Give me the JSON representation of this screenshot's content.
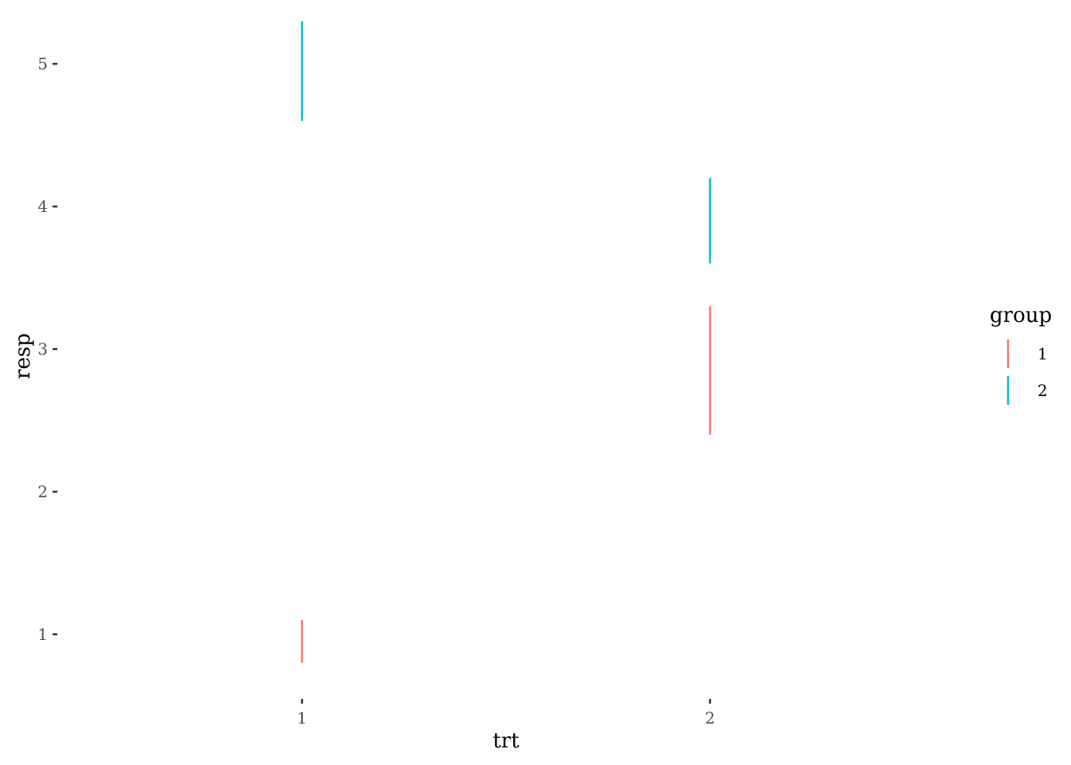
{
  "chart_data": {
    "type": "errorbar",
    "title": "",
    "xlabel": "trt",
    "ylabel": "resp",
    "categories": [
      "1",
      "2"
    ],
    "x_ticks": [
      "1",
      "2"
    ],
    "y_ticks": [
      1,
      2,
      3,
      4,
      5
    ],
    "ylim": [
      0.575,
      5.325
    ],
    "grid": false,
    "legend": {
      "title": "group",
      "placement": "right",
      "entries": [
        "1",
        "2"
      ]
    },
    "series": [
      {
        "name": "1",
        "color": "#F8766D",
        "points": [
          {
            "x": "1",
            "lower": 0.8,
            "upper": 1.1
          },
          {
            "x": "2",
            "lower": 2.4,
            "upper": 3.3
          }
        ]
      },
      {
        "name": "2",
        "color": "#00BFC4",
        "points": [
          {
            "x": "1",
            "lower": 4.6,
            "upper": 5.3
          },
          {
            "x": "2",
            "lower": 3.6,
            "upper": 4.2
          }
        ]
      }
    ]
  }
}
